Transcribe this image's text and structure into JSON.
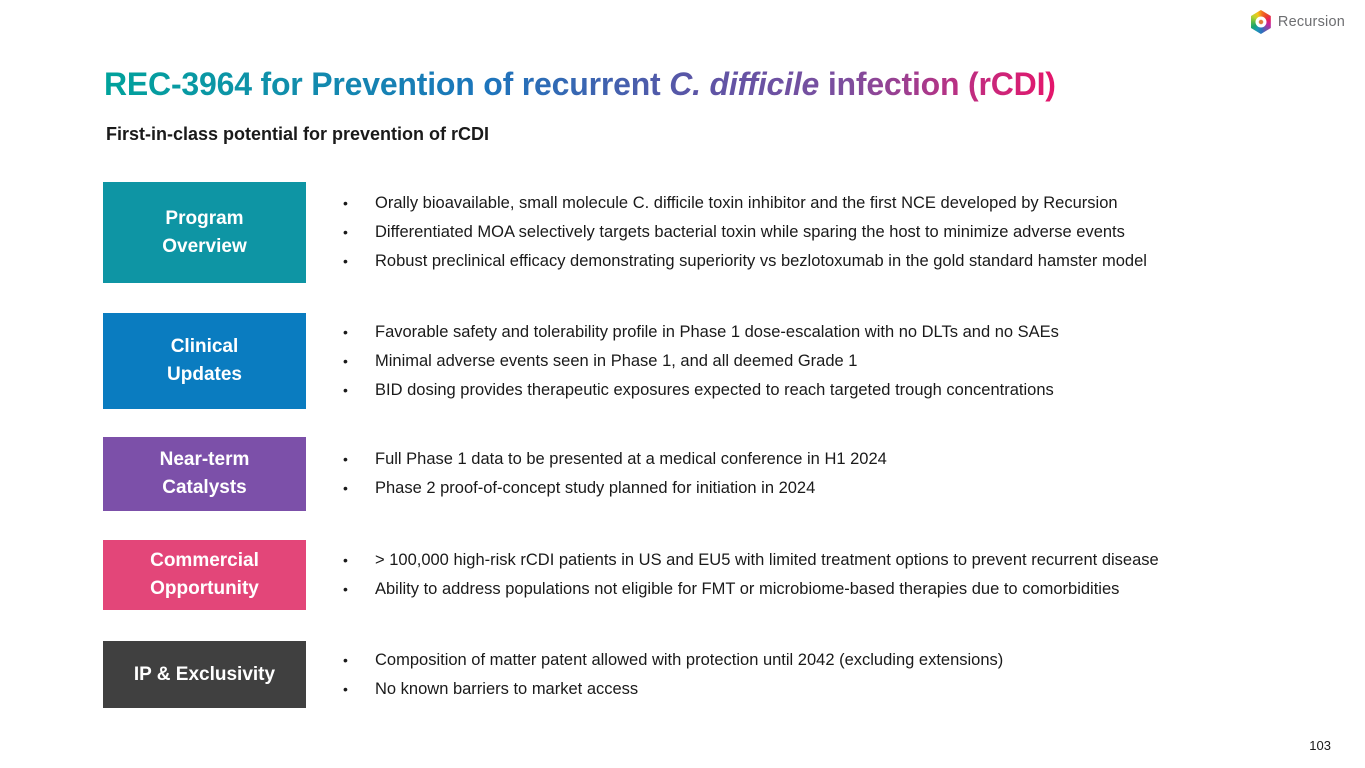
{
  "logo": {
    "text": "Recursion"
  },
  "title": {
    "segment1": "REC-3964 for Prevention of recurrent ",
    "segment2_italic": "C. difficile",
    "segment3": " infection (rCDI)",
    "gradient_colors": [
      "#00a29b",
      "#1c75bc",
      "#5b55a6",
      "#7d4e9e",
      "#e5156b"
    ]
  },
  "subtitle": "First-in-class potential for prevention of rCDI",
  "bullet_char": "•",
  "sections": [
    {
      "label_line1": "Program",
      "label_line2": "Overview",
      "color": "#0e95a4",
      "bullets": [
        "Orally bioavailable, small molecule C. difficile toxin inhibitor and the first NCE developed by Recursion",
        "Differentiated MOA selectively targets bacterial toxin while sparing the host to minimize adverse events",
        "Robust preclinical efficacy demonstrating superiority vs bezlotoxumab in the gold standard hamster model"
      ]
    },
    {
      "label_line1": "Clinical",
      "label_line2": "Updates",
      "color": "#0a7cc0",
      "bullets": [
        "Favorable safety and tolerability profile in Phase 1 dose-escalation with no DLTs and no SAEs",
        "Minimal adverse events seen in Phase 1, and all deemed Grade 1",
        "BID dosing provides therapeutic exposures expected to reach targeted trough concentrations"
      ]
    },
    {
      "label_line1": "Near-term",
      "label_line2": "Catalysts",
      "color": "#7c50a9",
      "bullets": [
        "Full Phase 1 data to be presented at a medical conference in H1 2024",
        "Phase 2 proof-of-concept study planned for initiation in 2024"
      ]
    },
    {
      "label_line1": "Commercial",
      "label_line2": "Opportunity",
      "color": "#e34679",
      "bullets": [
        "> 100,000 high-risk rCDI patients in US and EU5 with limited treatment options to prevent recurrent disease",
        "Ability to address populations not eligible for FMT or microbiome-based therapies due to comorbidities"
      ]
    },
    {
      "label_line1": "IP & Exclusivity",
      "color": "#404040",
      "bullets": [
        "Composition of matter patent allowed with protection until 2042 (excluding extensions)",
        "No known barriers to market access"
      ]
    }
  ],
  "footer": {
    "page_number": "103"
  }
}
